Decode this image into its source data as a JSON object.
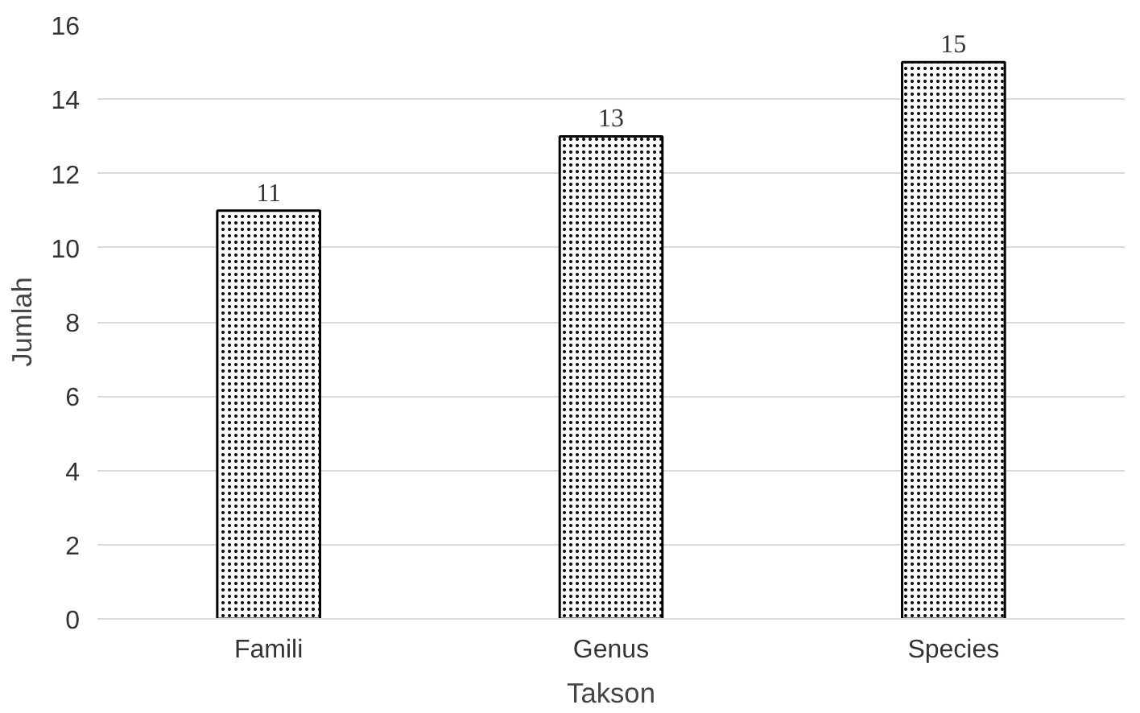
{
  "chart_data": {
    "type": "bar",
    "xlabel": "Takson",
    "ylabel": "Jumlah",
    "categories": [
      "Famili",
      "Genus",
      "Species"
    ],
    "values": [
      11,
      13,
      15
    ],
    "color": "#000000",
    "ylim": [
      0,
      16
    ],
    "yticks": [
      0,
      2,
      4,
      6,
      8,
      10,
      12,
      14,
      16
    ],
    "grid": "y",
    "data_labels": true
  }
}
